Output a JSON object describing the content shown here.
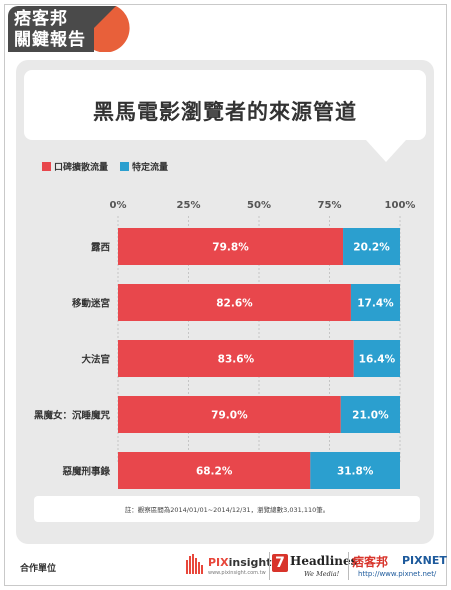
{
  "brand": {
    "line1": "痞客邦",
    "line2": "關鍵報告"
  },
  "title": "黑馬電影瀏覽者的來源管道",
  "colors": {
    "word_of_mouth": "#e8474c",
    "specific": "#2b9fcf",
    "grid": "#c5c5c5"
  },
  "chart_data": {
    "type": "bar",
    "orientation": "horizontal",
    "stacked": true,
    "categories": [
      "露西",
      "移動迷宮",
      "大法官",
      "黑魔女：沉睡魔咒",
      "惡魔刑事錄"
    ],
    "series": [
      {
        "name": "口碑擴散流量",
        "values": [
          79.8,
          82.6,
          83.6,
          79.0,
          68.2
        ]
      },
      {
        "name": "特定流量",
        "values": [
          20.2,
          17.4,
          16.4,
          21.0,
          31.8
        ]
      }
    ],
    "xlim": [
      0,
      100
    ],
    "xticks": [
      "0%",
      "25%",
      "50%",
      "75%",
      "100%"
    ],
    "value_suffix": "%",
    "legend_position": "top-left",
    "grid": true
  },
  "note": "註：觀察區間為2014/01/01~2014/12/31，瀏覽總數3,031,110筆。",
  "footer": {
    "partner_label": "合作單位",
    "pixinsight": {
      "name_a": "PIX",
      "name_b": "insight",
      "url": "www.pixinsight.com.tw"
    },
    "headlines": {
      "seven": "7",
      "name": "Headlines",
      "tag": "We Media!"
    },
    "pixnet": {
      "cn": "痞客邦",
      "en": "PIXNET",
      "url": "http://www.pixnet.net/"
    }
  }
}
